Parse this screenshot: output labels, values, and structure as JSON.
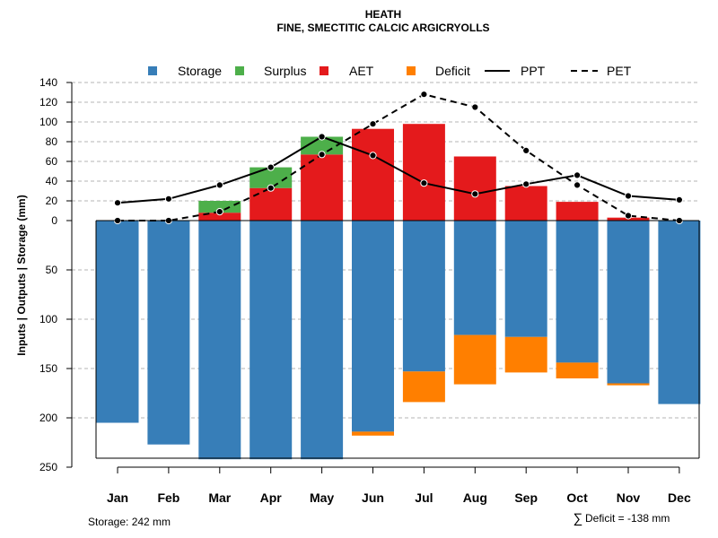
{
  "chart_data": {
    "type": "bar",
    "title": "HEATH",
    "subtitle": "FINE, SMECTITIC CALCIC ARGICRYOLLS",
    "ylabel": "Inputs | Outputs | Storage     (mm)",
    "upper_ylim": [
      0,
      140
    ],
    "upper_ticks": [
      "140",
      "120",
      "100",
      "80",
      "60",
      "40",
      "20",
      "0"
    ],
    "upper_tick_values": [
      140,
      120,
      100,
      80,
      60,
      40,
      20,
      0
    ],
    "lower_ylim": [
      0,
      250
    ],
    "lower_ticks": [
      "50",
      "100",
      "150",
      "200",
      "250"
    ],
    "lower_tick_values": [
      50,
      100,
      150,
      200,
      250
    ],
    "categories": [
      "Jan",
      "Feb",
      "Mar",
      "Apr",
      "May",
      "Jun",
      "Jul",
      "Aug",
      "Sep",
      "Oct",
      "Nov",
      "Dec"
    ],
    "series": [
      {
        "name": "Storage",
        "color": "#377EB8",
        "values": [
          205,
          227,
          242,
          242,
          242,
          214,
          153,
          116,
          118,
          144,
          165,
          186
        ]
      },
      {
        "name": "Surplus",
        "color": "#4DAF4A",
        "values": [
          0,
          0,
          12,
          21,
          18,
          0,
          0,
          0,
          0,
          0,
          0,
          0
        ]
      },
      {
        "name": "AET",
        "color": "#E41A1C",
        "values": [
          0,
          0,
          8,
          33,
          67,
          93,
          98,
          65,
          35,
          19,
          3,
          0
        ]
      },
      {
        "name": "Deficit",
        "color": "#FF7F00",
        "values": [
          0,
          0,
          0,
          0,
          0,
          4,
          31,
          50,
          36,
          16,
          2,
          0
        ]
      },
      {
        "name": "PPT",
        "color": "#000000",
        "values": [
          18,
          22,
          36,
          54,
          85,
          66,
          38,
          27,
          37,
          46,
          25,
          21
        ]
      },
      {
        "name": "PET",
        "color": "#000000",
        "values": [
          0,
          0,
          9,
          33,
          67,
          98,
          128,
          115,
          71,
          36,
          5,
          0
        ]
      }
    ],
    "legend": [
      "Storage",
      "Surplus",
      "AET",
      "Deficit",
      "PPT",
      "PET"
    ],
    "legend_position": "top",
    "grid": true
  },
  "footer": {
    "storage_label": "Storage: 242 mm",
    "deficit_symbol": "∑",
    "deficit_label": "Deficit = -138 mm"
  }
}
